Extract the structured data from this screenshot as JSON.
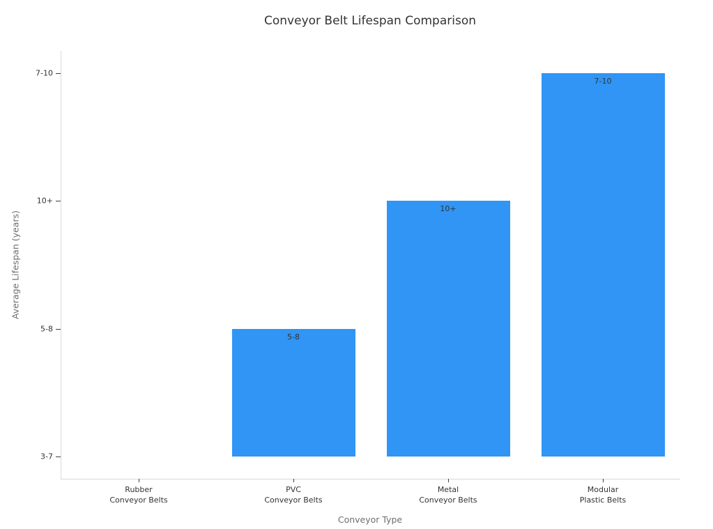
{
  "chart_data": {
    "type": "bar",
    "title": "Conveyor Belt Lifespan Comparison",
    "xlabel": "Conveyor Type",
    "ylabel": "Average Lifespan (years)",
    "categories": [
      {
        "line1": "Rubber",
        "line2": "Conveyor Belts"
      },
      {
        "line1": "PVC",
        "line2": "Conveyor Belts"
      },
      {
        "line1": "Metal",
        "line2": "Conveyor Belts"
      },
      {
        "line1": "Modular",
        "line2": "Plastic Belts"
      }
    ],
    "values": [
      "3-7",
      "5-8",
      "10+",
      "7-10"
    ],
    "value_codes": [
      0,
      1,
      2,
      3
    ],
    "bar_labels": [
      "",
      "5-8",
      "10+",
      "7-10"
    ],
    "y_ticks": [
      "3-7",
      "5-8",
      "10+",
      "7-10"
    ],
    "legend": "none",
    "grid": false,
    "colors": {
      "bar": "#3095F5",
      "spine": "#d9d9d9",
      "tick_mark": "#3b3b3b",
      "tick_text": "#333333",
      "axis_label_text": "#6e6e6e",
      "title_text": "#333333",
      "background": "#ffffff"
    }
  }
}
